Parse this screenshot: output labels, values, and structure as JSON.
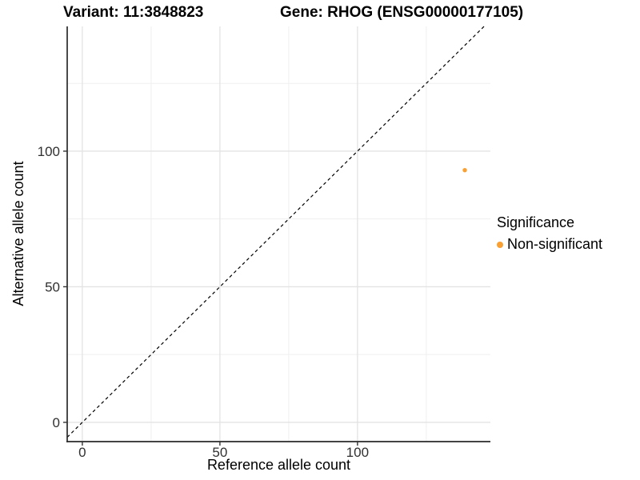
{
  "header": {
    "variant_title": "Variant: 11:3848823",
    "gene_title": "Gene: RHOG (ENSG00000177105)"
  },
  "legend": {
    "title": "Significance",
    "items": [
      {
        "label": "Non-significant",
        "color": "#FAA032"
      }
    ]
  },
  "chart_data": {
    "type": "scatter",
    "title": "Variant: 11:3848823 — Gene: RHOG (ENSG00000177105)",
    "xlabel": "Reference allele count",
    "ylabel": "Alternative allele count",
    "xlim": [
      -5.5,
      148.3
    ],
    "ylim": [
      -7.1,
      146.0
    ],
    "x_ticks": [
      0,
      50,
      100
    ],
    "y_ticks": [
      0,
      50,
      100
    ],
    "x_minor_gridlines": [
      25,
      75,
      125
    ],
    "y_minor_gridlines": [
      25,
      75,
      125
    ],
    "grid": true,
    "legend_position": "right",
    "series": [
      {
        "name": "Non-significant",
        "color": "#FAA032",
        "point_radius": 2.7,
        "points": [
          {
            "x": 139,
            "y": 93
          }
        ]
      }
    ],
    "identity_line": {
      "slope": 1,
      "intercept": 0,
      "style": "dashed",
      "color": "#000000"
    }
  },
  "style": {
    "background": "#ffffff",
    "axis_line_color": "#2a2a2a",
    "tick_color": "#333333",
    "tick_label_color": "#303030",
    "major_grid_color": "#e3e3e3",
    "minor_grid_color": "#efefef"
  }
}
